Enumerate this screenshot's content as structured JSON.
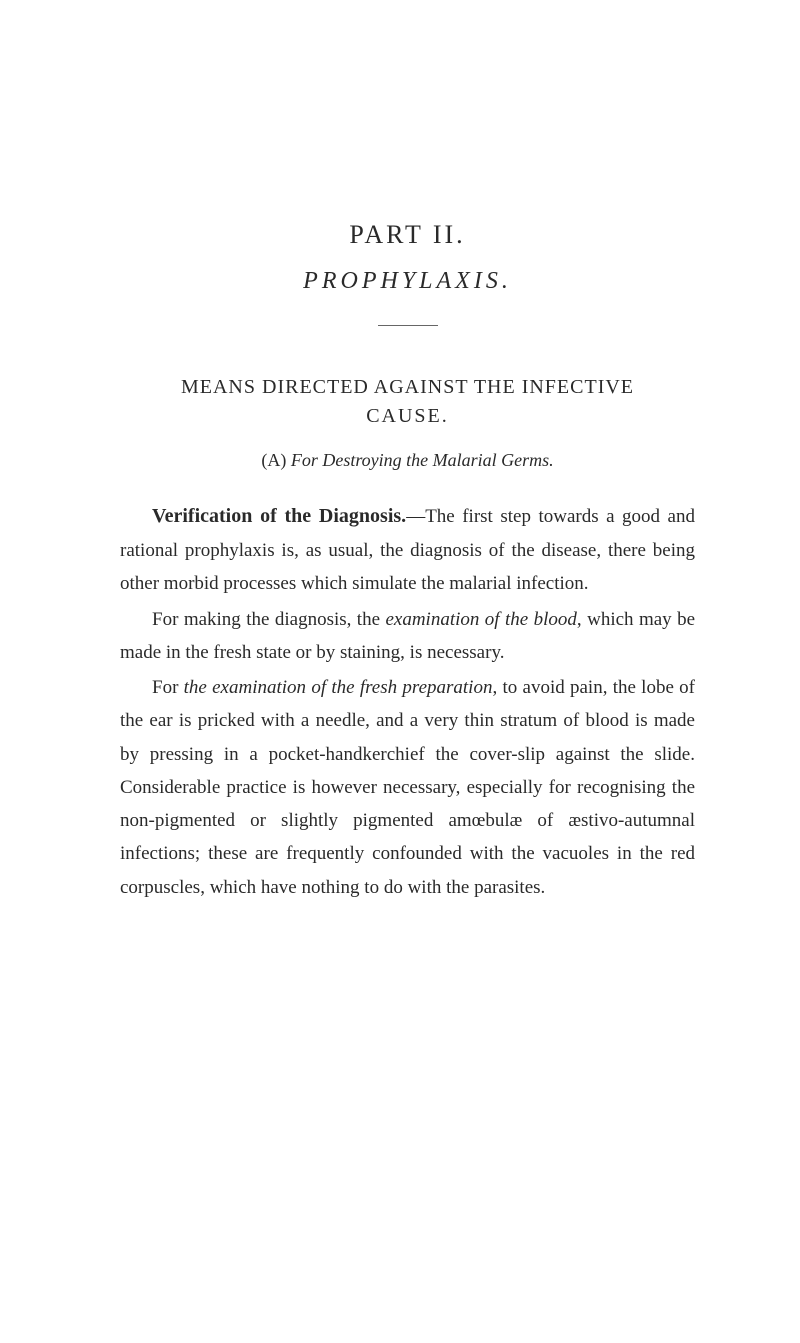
{
  "part_title": "PART II.",
  "subtitle": "PROPHYLAXIS.",
  "section_heading_line1": "MEANS DIRECTED AGAINST THE INFECTIVE",
  "section_heading_line2": "CAUSE.",
  "subsection_label": "(A)",
  "subsection_text": "For Destroying the Malarial Germs.",
  "para1_bold": "Verification of the Diagnosis.",
  "para1_rest": "—The first step towards a good and rational prophylaxis is, as usual, the diagnosis of the disease, there being other morbid processes which simulate the malarial infection.",
  "para2_start": "For making the diagnosis, the ",
  "para2_italic1": "examination of the blood",
  "para2_rest": ", which may be made in the fresh state or by staining, is necessary.",
  "para3_start": "For ",
  "para3_italic1": "the examination of the fresh preparation",
  "para3_rest": ", to avoid pain, the lobe of the ear is pricked with a needle, and a very thin stratum of blood is made by pressing in a pocket-handkerchief the cover-slip against the slide. Considerable practice is however necessary, especially for recognising the non-pigmented or slightly pigmented amœbulæ of æstivo-autumnal infections; these are frequently confounded with the vacuoles in the red corpuscles, which have nothing to do with the parasites."
}
